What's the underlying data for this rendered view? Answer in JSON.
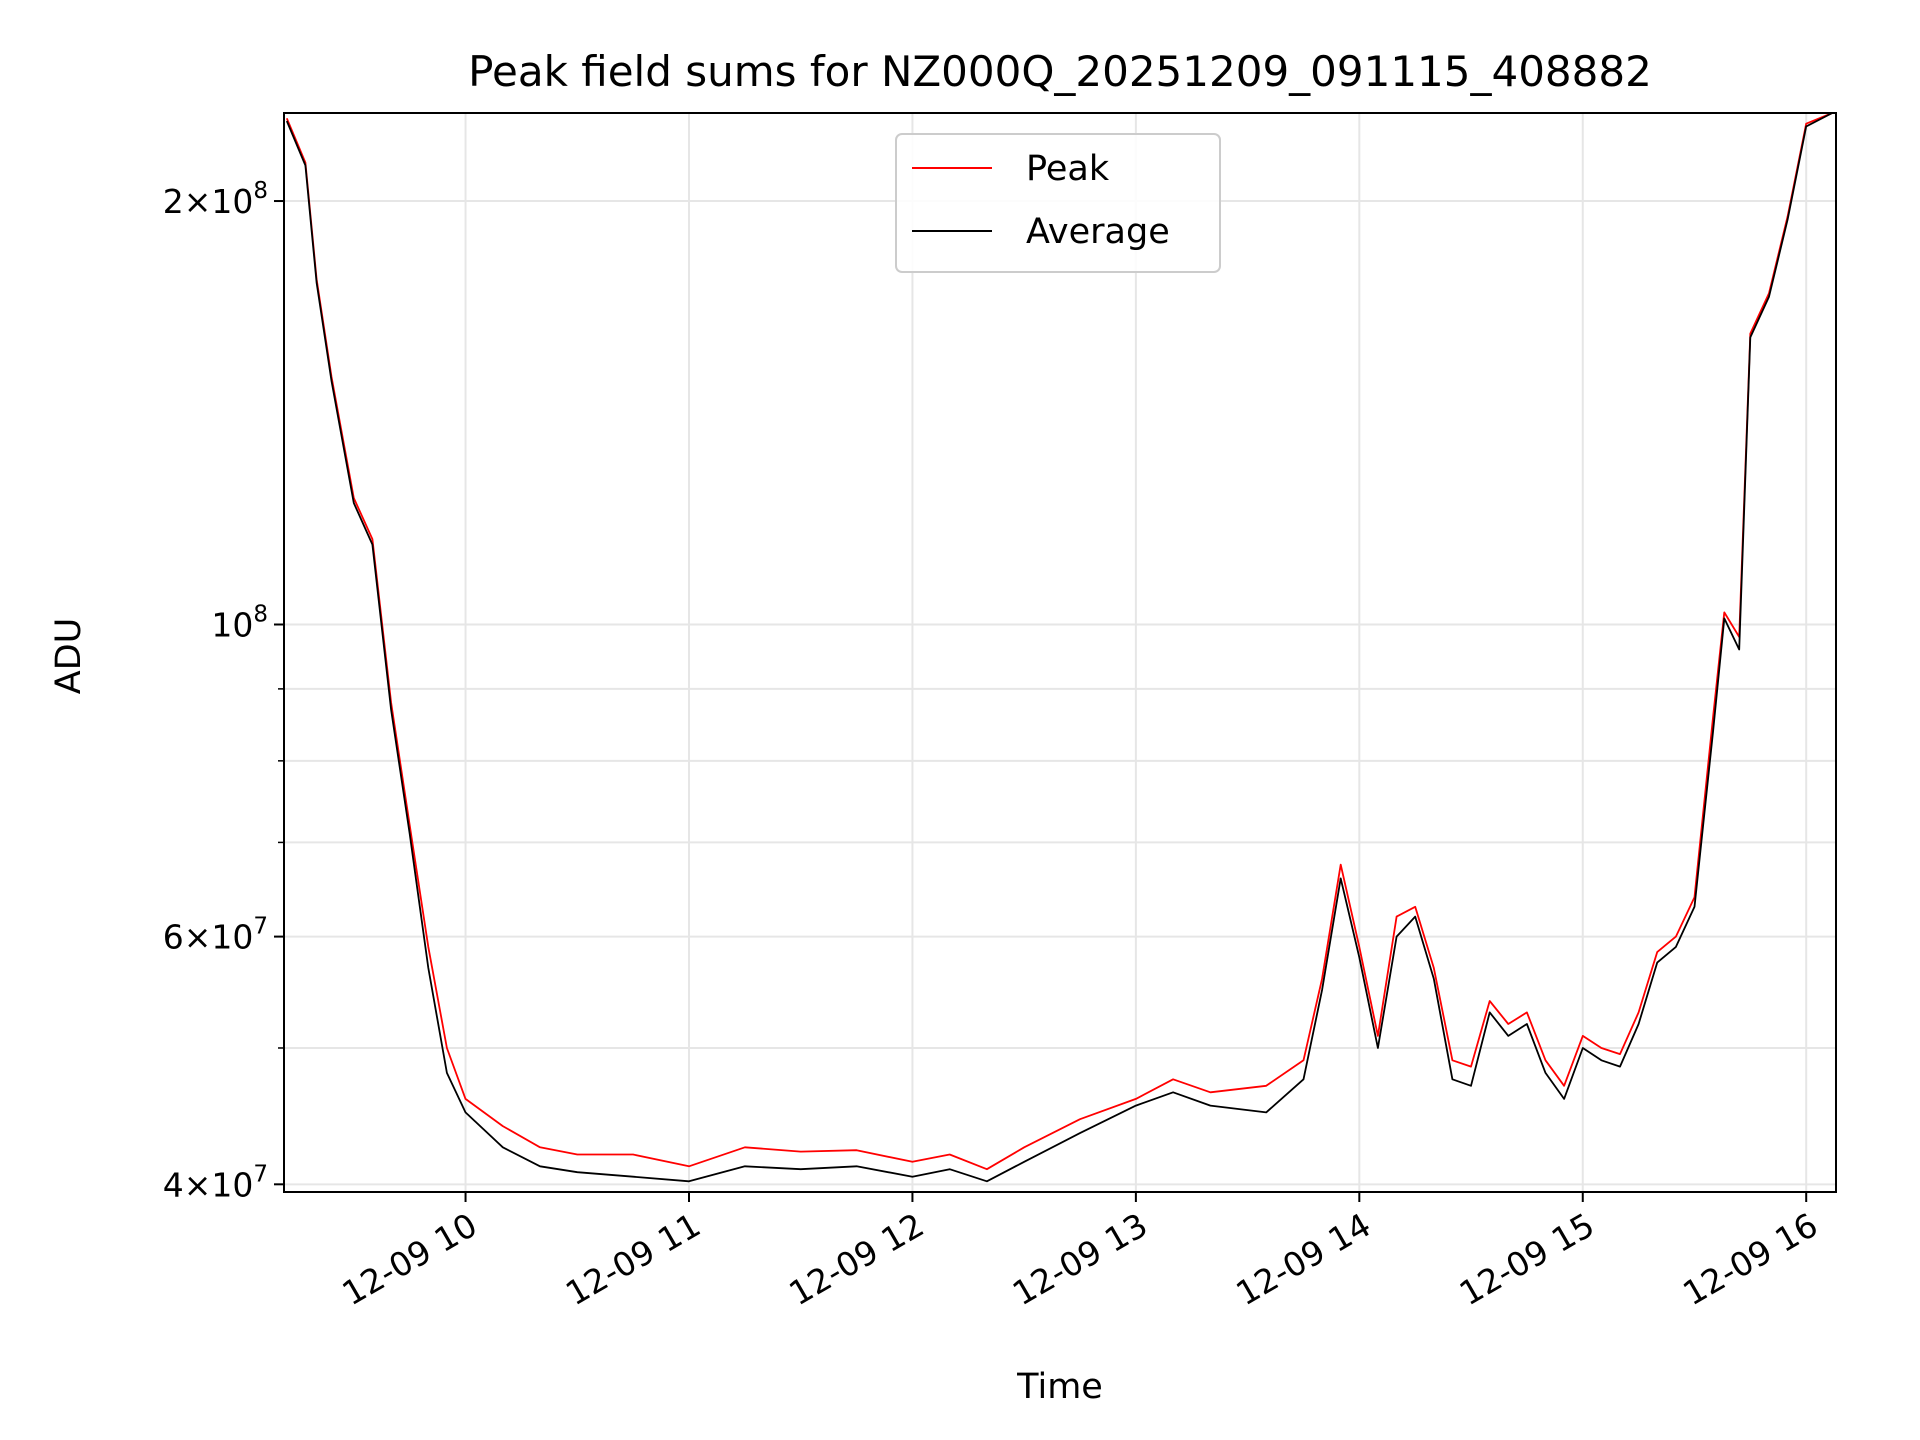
{
  "chart_data": {
    "type": "line",
    "title": "Peak field sums for NZ000Q_20251209_091115_408882",
    "xlabel": "Time",
    "ylabel": "ADU",
    "x_domain": [
      "2025-12-09T09:11:15",
      "2025-12-09T16:08:00"
    ],
    "y_scale": "log",
    "ylim": [
      39500000,
      231000000
    ],
    "grid": true,
    "legend_position": "top-center",
    "x_ticks": [
      {
        "t": "2025-12-09T10:00",
        "label": "12-09 10"
      },
      {
        "t": "2025-12-09T11:00",
        "label": "12-09 11"
      },
      {
        "t": "2025-12-09T12:00",
        "label": "12-09 12"
      },
      {
        "t": "2025-12-09T13:00",
        "label": "12-09 13"
      },
      {
        "t": "2025-12-09T14:00",
        "label": "12-09 14"
      },
      {
        "t": "2025-12-09T15:00",
        "label": "12-09 15"
      },
      {
        "t": "2025-12-09T16:00",
        "label": "12-09 16"
      }
    ],
    "y_major_ticks": [
      {
        "value": 40000000,
        "mantissa": "4",
        "exp": "7"
      },
      {
        "value": 60000000,
        "mantissa": "6",
        "exp": "7"
      },
      {
        "value": 100000000,
        "mantissa": "",
        "exp": "8"
      },
      {
        "value": 200000000,
        "mantissa": "2",
        "exp": "8"
      }
    ],
    "y_minor_ticks": [
      50000000,
      70000000,
      80000000,
      90000000
    ],
    "series": [
      {
        "name": "Peak",
        "color": "#ff0000",
        "points": [
          [
            "2025-12-09T09:12",
            229000000
          ],
          [
            "2025-12-09T09:17",
            213000000
          ],
          [
            "2025-12-09T09:20",
            176000000
          ],
          [
            "2025-12-09T09:24",
            150000000
          ],
          [
            "2025-12-09T09:30",
            123000000
          ],
          [
            "2025-12-09T09:35",
            115000000
          ],
          [
            "2025-12-09T09:40",
            88000000
          ],
          [
            "2025-12-09T09:45",
            72000000
          ],
          [
            "2025-12-09T09:50",
            59000000
          ],
          [
            "2025-12-09T09:55",
            50000000
          ],
          [
            "2025-12-09T10:00",
            46000000
          ],
          [
            "2025-12-09T10:10",
            44000000
          ],
          [
            "2025-12-09T10:20",
            42500000
          ],
          [
            "2025-12-09T10:30",
            42000000
          ],
          [
            "2025-12-09T10:45",
            42000000
          ],
          [
            "2025-12-09T11:00",
            41200000
          ],
          [
            "2025-12-09T11:15",
            42500000
          ],
          [
            "2025-12-09T11:30",
            42200000
          ],
          [
            "2025-12-09T11:45",
            42300000
          ],
          [
            "2025-12-09T12:00",
            41500000
          ],
          [
            "2025-12-09T12:10",
            42000000
          ],
          [
            "2025-12-09T12:20",
            41000000
          ],
          [
            "2025-12-09T12:30",
            42500000
          ],
          [
            "2025-12-09T12:45",
            44500000
          ],
          [
            "2025-12-09T13:00",
            46000000
          ],
          [
            "2025-12-09T13:10",
            47500000
          ],
          [
            "2025-12-09T13:20",
            46500000
          ],
          [
            "2025-12-09T13:35",
            47000000
          ],
          [
            "2025-12-09T13:45",
            49000000
          ],
          [
            "2025-12-09T13:50",
            56000000
          ],
          [
            "2025-12-09T13:55",
            67500000
          ],
          [
            "2025-12-09T14:00",
            59000000
          ],
          [
            "2025-12-09T14:05",
            51000000
          ],
          [
            "2025-12-09T14:10",
            62000000
          ],
          [
            "2025-12-09T14:15",
            63000000
          ],
          [
            "2025-12-09T14:20",
            57000000
          ],
          [
            "2025-12-09T14:25",
            49000000
          ],
          [
            "2025-12-09T14:30",
            48500000
          ],
          [
            "2025-12-09T14:35",
            54000000
          ],
          [
            "2025-12-09T14:40",
            52000000
          ],
          [
            "2025-12-09T14:45",
            53000000
          ],
          [
            "2025-12-09T14:50",
            49000000
          ],
          [
            "2025-12-09T14:55",
            47000000
          ],
          [
            "2025-12-09T15:00",
            51000000
          ],
          [
            "2025-12-09T15:05",
            50000000
          ],
          [
            "2025-12-09T15:10",
            49500000
          ],
          [
            "2025-12-09T15:15",
            53000000
          ],
          [
            "2025-12-09T15:20",
            58500000
          ],
          [
            "2025-12-09T15:25",
            60000000
          ],
          [
            "2025-12-09T15:30",
            64000000
          ],
          [
            "2025-12-09T15:35",
            86000000
          ],
          [
            "2025-12-09T15:38",
            102000000
          ],
          [
            "2025-12-09T15:42",
            98000000
          ],
          [
            "2025-12-09T15:45",
            161000000
          ],
          [
            "2025-12-09T15:50",
            172000000
          ],
          [
            "2025-12-09T15:55",
            195000000
          ],
          [
            "2025-12-09T16:00",
            227000000
          ],
          [
            "2025-12-09T16:07",
            231000000
          ]
        ]
      },
      {
        "name": "Average",
        "color": "#000000",
        "points": [
          [
            "2025-12-09T09:12",
            228000000
          ],
          [
            "2025-12-09T09:17",
            212000000
          ],
          [
            "2025-12-09T09:20",
            175000000
          ],
          [
            "2025-12-09T09:24",
            149000000
          ],
          [
            "2025-12-09T09:30",
            122000000
          ],
          [
            "2025-12-09T09:35",
            114000000
          ],
          [
            "2025-12-09T09:40",
            87000000
          ],
          [
            "2025-12-09T09:45",
            71000000
          ],
          [
            "2025-12-09T09:50",
            57000000
          ],
          [
            "2025-12-09T09:55",
            48000000
          ],
          [
            "2025-12-09T10:00",
            45000000
          ],
          [
            "2025-12-09T10:10",
            42500000
          ],
          [
            "2025-12-09T10:20",
            41200000
          ],
          [
            "2025-12-09T10:30",
            40800000
          ],
          [
            "2025-12-09T10:45",
            40500000
          ],
          [
            "2025-12-09T11:00",
            40200000
          ],
          [
            "2025-12-09T11:15",
            41200000
          ],
          [
            "2025-12-09T11:30",
            41000000
          ],
          [
            "2025-12-09T11:45",
            41200000
          ],
          [
            "2025-12-09T12:00",
            40500000
          ],
          [
            "2025-12-09T12:10",
            41000000
          ],
          [
            "2025-12-09T12:20",
            40200000
          ],
          [
            "2025-12-09T12:30",
            41500000
          ],
          [
            "2025-12-09T12:45",
            43500000
          ],
          [
            "2025-12-09T13:00",
            45500000
          ],
          [
            "2025-12-09T13:10",
            46500000
          ],
          [
            "2025-12-09T13:20",
            45500000
          ],
          [
            "2025-12-09T13:35",
            45000000
          ],
          [
            "2025-12-09T13:45",
            47500000
          ],
          [
            "2025-12-09T13:50",
            55000000
          ],
          [
            "2025-12-09T13:55",
            66000000
          ],
          [
            "2025-12-09T14:00",
            58000000
          ],
          [
            "2025-12-09T14:05",
            50000000
          ],
          [
            "2025-12-09T14:10",
            60000000
          ],
          [
            "2025-12-09T14:15",
            62000000
          ],
          [
            "2025-12-09T14:20",
            56000000
          ],
          [
            "2025-12-09T14:25",
            47500000
          ],
          [
            "2025-12-09T14:30",
            47000000
          ],
          [
            "2025-12-09T14:35",
            53000000
          ],
          [
            "2025-12-09T14:40",
            51000000
          ],
          [
            "2025-12-09T14:45",
            52000000
          ],
          [
            "2025-12-09T14:50",
            48000000
          ],
          [
            "2025-12-09T14:55",
            46000000
          ],
          [
            "2025-12-09T15:00",
            50000000
          ],
          [
            "2025-12-09T15:05",
            49000000
          ],
          [
            "2025-12-09T15:10",
            48500000
          ],
          [
            "2025-12-09T15:15",
            52000000
          ],
          [
            "2025-12-09T15:20",
            57500000
          ],
          [
            "2025-12-09T15:25",
            59000000
          ],
          [
            "2025-12-09T15:30",
            63000000
          ],
          [
            "2025-12-09T15:35",
            84000000
          ],
          [
            "2025-12-09T15:38",
            101000000
          ],
          [
            "2025-12-09T15:42",
            96000000
          ],
          [
            "2025-12-09T15:45",
            160000000
          ],
          [
            "2025-12-09T15:50",
            171000000
          ],
          [
            "2025-12-09T15:55",
            194000000
          ],
          [
            "2025-12-09T16:00",
            226000000
          ],
          [
            "2025-12-09T16:07",
            231000000
          ]
        ]
      }
    ]
  }
}
